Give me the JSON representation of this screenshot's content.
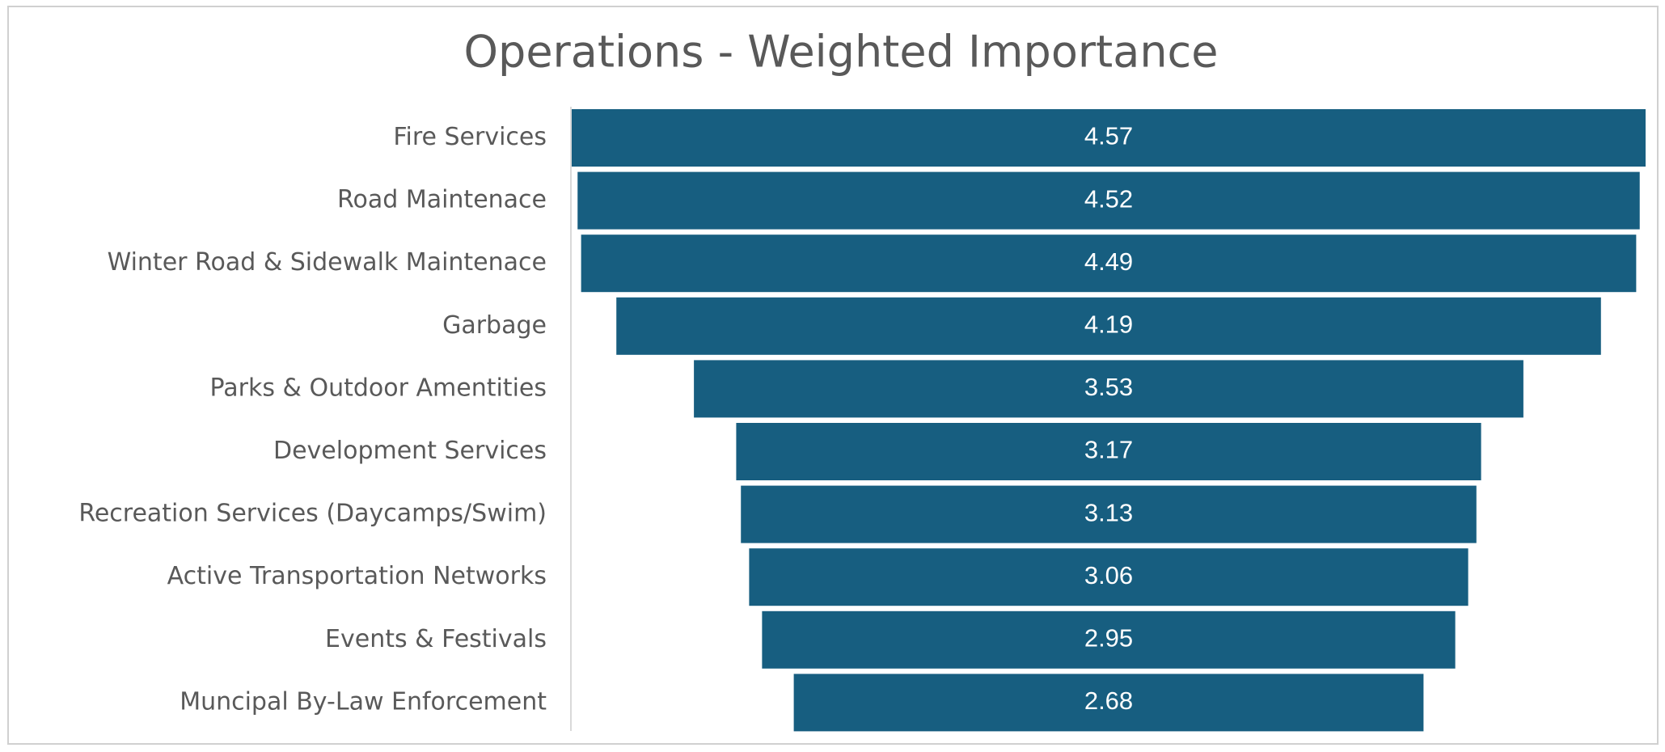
{
  "chart_data": {
    "type": "funnel",
    "title": "Operations - Weighted Importance",
    "categories": [
      "Fire Services",
      "Road Maintenace",
      "Winter Road & Sidewalk Maintenace",
      "Garbage",
      "Parks & Outdoor Amentities",
      "Development Services",
      "Recreation Services (Daycamps/Swim)",
      "Active Transportation Networks",
      "Events & Festivals",
      "Muncipal By-Law Enforcement"
    ],
    "values": [
      4.57,
      4.52,
      4.49,
      4.19,
      3.53,
      3.17,
      3.13,
      3.06,
      2.95,
      2.68
    ],
    "color": "#175e80"
  }
}
